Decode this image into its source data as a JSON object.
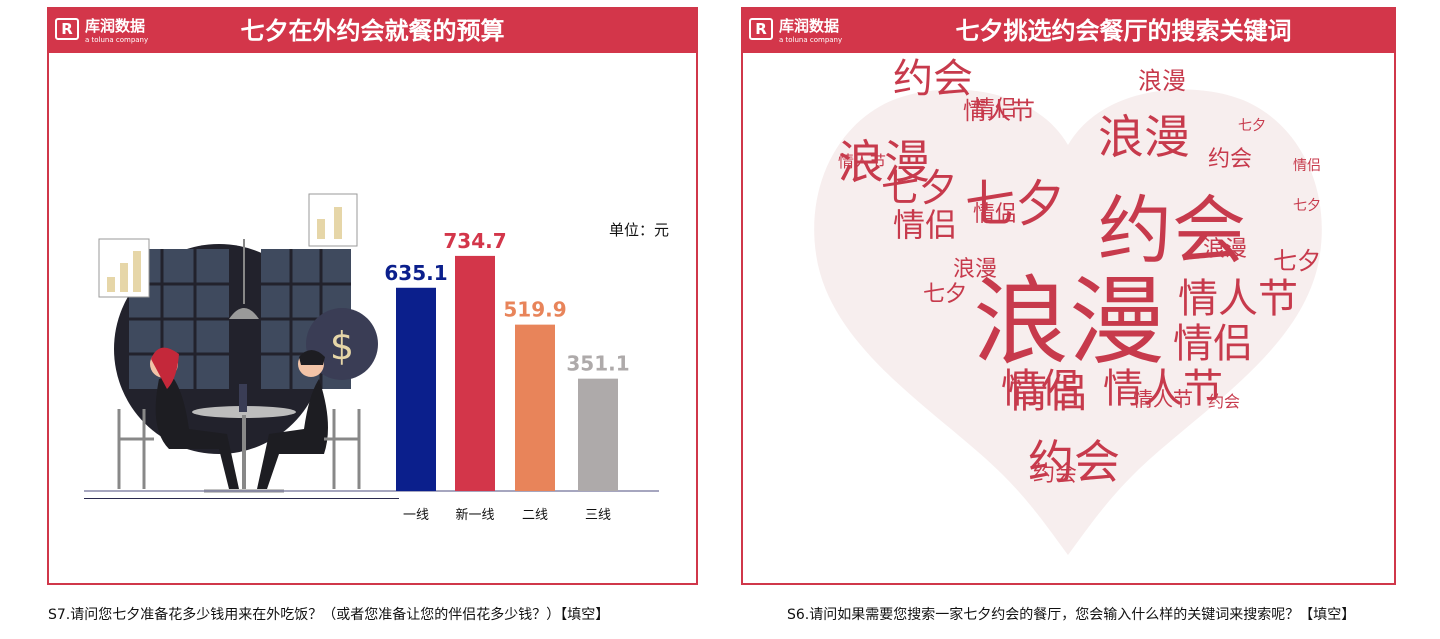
{
  "left_panel": {
    "logo": {
      "brand": "库润数据",
      "tagline": "a toluna company"
    },
    "title": "七夕在外约会就餐的预算",
    "unit_label": "单位：元",
    "caption": "S7.请问您七夕准备花多少钱用来在外吃饭？（或者您准备让您的伴侣花多少钱？）【填空】"
  },
  "right_panel": {
    "logo": {
      "brand": "库润数据",
      "tagline": "a toluna company"
    },
    "title": "七夕挑选约会餐厅的搜索关键词",
    "caption": "S6.请问如果需要您搜索一家七夕约会的餐厅，您会输入什么样的关键词来搜索呢？【填空】",
    "keywords": [
      "浪漫",
      "约会",
      "七夕",
      "情侣",
      "情人节"
    ]
  },
  "chart_data": [
    {
      "type": "bar",
      "title": "七夕在外约会就餐的预算",
      "categories": [
        "一线",
        "新一线",
        "二线",
        "三线"
      ],
      "values": [
        635.1,
        734.7,
        519.9,
        351.1
      ],
      "value_labels": [
        "635.1",
        "734.7",
        "519.9",
        "351.1"
      ],
      "unit": "单位：元",
      "colors": [
        "#0b1f8c",
        "#d3364a",
        "#e8845a",
        "#aeaaaa"
      ],
      "ylim": [
        0,
        900
      ],
      "grid": false,
      "xlabel": "",
      "ylabel": ""
    }
  ]
}
